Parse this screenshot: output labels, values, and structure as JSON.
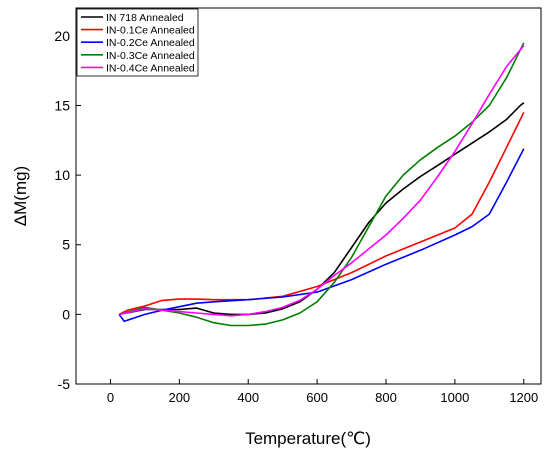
{
  "chart_data": {
    "type": "line",
    "xlabel": "Temperature(℃)",
    "ylabel": "ΔM(mg)",
    "xlim": [
      -100,
      1250
    ],
    "ylim": [
      -5,
      22
    ],
    "xticks": [
      0,
      200,
      400,
      600,
      800,
      1000,
      1200
    ],
    "yticks": [
      -5,
      0,
      5,
      10,
      15,
      20
    ],
    "grid": false,
    "legend_position": "top-left",
    "series": [
      {
        "name": "IN 718 Annealed",
        "color": "#000000",
        "points": [
          [
            25,
            0.0
          ],
          [
            100,
            0.35
          ],
          [
            200,
            0.35
          ],
          [
            250,
            0.45
          ],
          [
            300,
            0.1
          ],
          [
            350,
            0.0
          ],
          [
            400,
            0.0
          ],
          [
            450,
            0.1
          ],
          [
            500,
            0.4
          ],
          [
            550,
            0.9
          ],
          [
            600,
            1.8
          ],
          [
            650,
            3.0
          ],
          [
            700,
            4.8
          ],
          [
            750,
            6.6
          ],
          [
            800,
            8.0
          ],
          [
            850,
            9.0
          ],
          [
            900,
            9.9
          ],
          [
            950,
            10.7
          ],
          [
            1000,
            11.5
          ],
          [
            1050,
            12.3
          ],
          [
            1100,
            13.1
          ],
          [
            1150,
            14.0
          ],
          [
            1190,
            15.0
          ],
          [
            1200,
            15.2
          ]
        ]
      },
      {
        "name": "IN-0.1Ce Annealed",
        "color": "#ff0000",
        "points": [
          [
            25,
            0.0
          ],
          [
            50,
            0.3
          ],
          [
            100,
            0.6
          ],
          [
            150,
            1.0
          ],
          [
            200,
            1.1
          ],
          [
            250,
            1.1
          ],
          [
            300,
            1.05
          ],
          [
            400,
            1.05
          ],
          [
            500,
            1.3
          ],
          [
            600,
            2.0
          ],
          [
            700,
            3.0
          ],
          [
            800,
            4.2
          ],
          [
            900,
            5.2
          ],
          [
            1000,
            6.2
          ],
          [
            1050,
            7.2
          ],
          [
            1100,
            9.5
          ],
          [
            1150,
            12.0
          ],
          [
            1200,
            14.5
          ]
        ]
      },
      {
        "name": "IN-0.2Ce Annealed",
        "color": "#0000ff",
        "points": [
          [
            25,
            0.0
          ],
          [
            40,
            -0.5
          ],
          [
            100,
            0.0
          ],
          [
            150,
            0.3
          ],
          [
            200,
            0.55
          ],
          [
            250,
            0.8
          ],
          [
            300,
            0.9
          ],
          [
            400,
            1.05
          ],
          [
            500,
            1.25
          ],
          [
            600,
            1.6
          ],
          [
            700,
            2.5
          ],
          [
            800,
            3.6
          ],
          [
            900,
            4.6
          ],
          [
            1000,
            5.7
          ],
          [
            1050,
            6.3
          ],
          [
            1100,
            7.2
          ],
          [
            1150,
            9.5
          ],
          [
            1200,
            11.9
          ]
        ]
      },
      {
        "name": "IN-0.3Ce Annealed",
        "color": "#008000",
        "points": [
          [
            25,
            0.0
          ],
          [
            100,
            0.5
          ],
          [
            150,
            0.3
          ],
          [
            200,
            0.1
          ],
          [
            250,
            -0.2
          ],
          [
            300,
            -0.6
          ],
          [
            350,
            -0.8
          ],
          [
            400,
            -0.8
          ],
          [
            450,
            -0.7
          ],
          [
            500,
            -0.4
          ],
          [
            550,
            0.1
          ],
          [
            600,
            0.9
          ],
          [
            650,
            2.3
          ],
          [
            700,
            4.1
          ],
          [
            750,
            6.3
          ],
          [
            800,
            8.5
          ],
          [
            850,
            10.0
          ],
          [
            900,
            11.1
          ],
          [
            950,
            12.0
          ],
          [
            1000,
            12.8
          ],
          [
            1050,
            13.8
          ],
          [
            1100,
            15.0
          ],
          [
            1150,
            17.0
          ],
          [
            1200,
            19.5
          ]
        ]
      },
      {
        "name": "IN-0.4Ce Annealed",
        "color": "#ff00ff",
        "points": [
          [
            25,
            0.0
          ],
          [
            100,
            0.4
          ],
          [
            150,
            0.3
          ],
          [
            200,
            0.2
          ],
          [
            250,
            0.1
          ],
          [
            300,
            0.0
          ],
          [
            350,
            -0.1
          ],
          [
            400,
            0.0
          ],
          [
            450,
            0.2
          ],
          [
            500,
            0.5
          ],
          [
            550,
            1.0
          ],
          [
            600,
            1.8
          ],
          [
            650,
            2.8
          ],
          [
            700,
            3.7
          ],
          [
            750,
            4.7
          ],
          [
            800,
            5.7
          ],
          [
            850,
            6.9
          ],
          [
            900,
            8.2
          ],
          [
            950,
            9.9
          ],
          [
            1000,
            11.7
          ],
          [
            1050,
            13.7
          ],
          [
            1100,
            15.8
          ],
          [
            1150,
            17.8
          ],
          [
            1200,
            19.3
          ]
        ]
      }
    ]
  }
}
